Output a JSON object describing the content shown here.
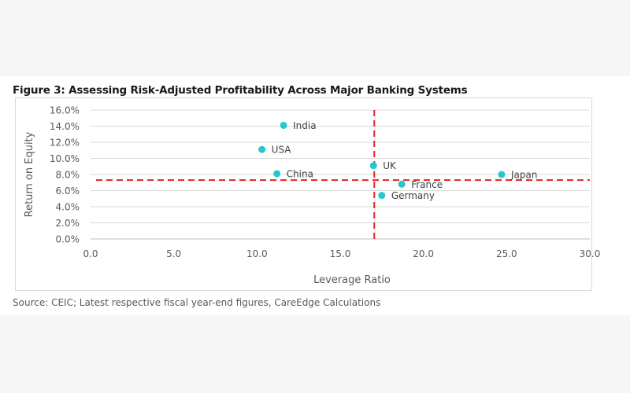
{
  "figure": {
    "title": "Figure 3: Assessing Risk-Adjusted Profitability Across Major Banking Systems",
    "source": "Source: CEIC; Latest respective fiscal year-end figures, CareEdge Calculations"
  },
  "chart_data": {
    "type": "scatter",
    "title": "",
    "xlabel": "Leverage Ratio",
    "ylabel": "Return on Equity",
    "xlim": [
      0,
      30
    ],
    "ylim": [
      0,
      16
    ],
    "x_ticks": [
      "0.0",
      "5.0",
      "10.0",
      "15.0",
      "20.0",
      "25.0",
      "30.0"
    ],
    "y_ticks": [
      "0.0%",
      "2.0%",
      "4.0%",
      "6.0%",
      "8.0%",
      "10.0%",
      "12.0%",
      "14.0%",
      "16.0%"
    ],
    "grid": "horizontal",
    "marker_color": "#27c7d0",
    "reference_line_color": "#e8201f",
    "reference_lines": {
      "x": 17.0,
      "y": 7.3
    },
    "points": [
      {
        "label": "India",
        "x": 11.6,
        "y": 14.1
      },
      {
        "label": "USA",
        "x": 10.3,
        "y": 11.1
      },
      {
        "label": "UK",
        "x": 17.0,
        "y": 9.1
      },
      {
        "label": "China",
        "x": 11.2,
        "y": 8.1
      },
      {
        "label": "Japan",
        "x": 24.7,
        "y": 8.0
      },
      {
        "label": "France",
        "x": 18.7,
        "y": 6.8
      },
      {
        "label": "Germany",
        "x": 17.5,
        "y": 5.4
      }
    ]
  }
}
